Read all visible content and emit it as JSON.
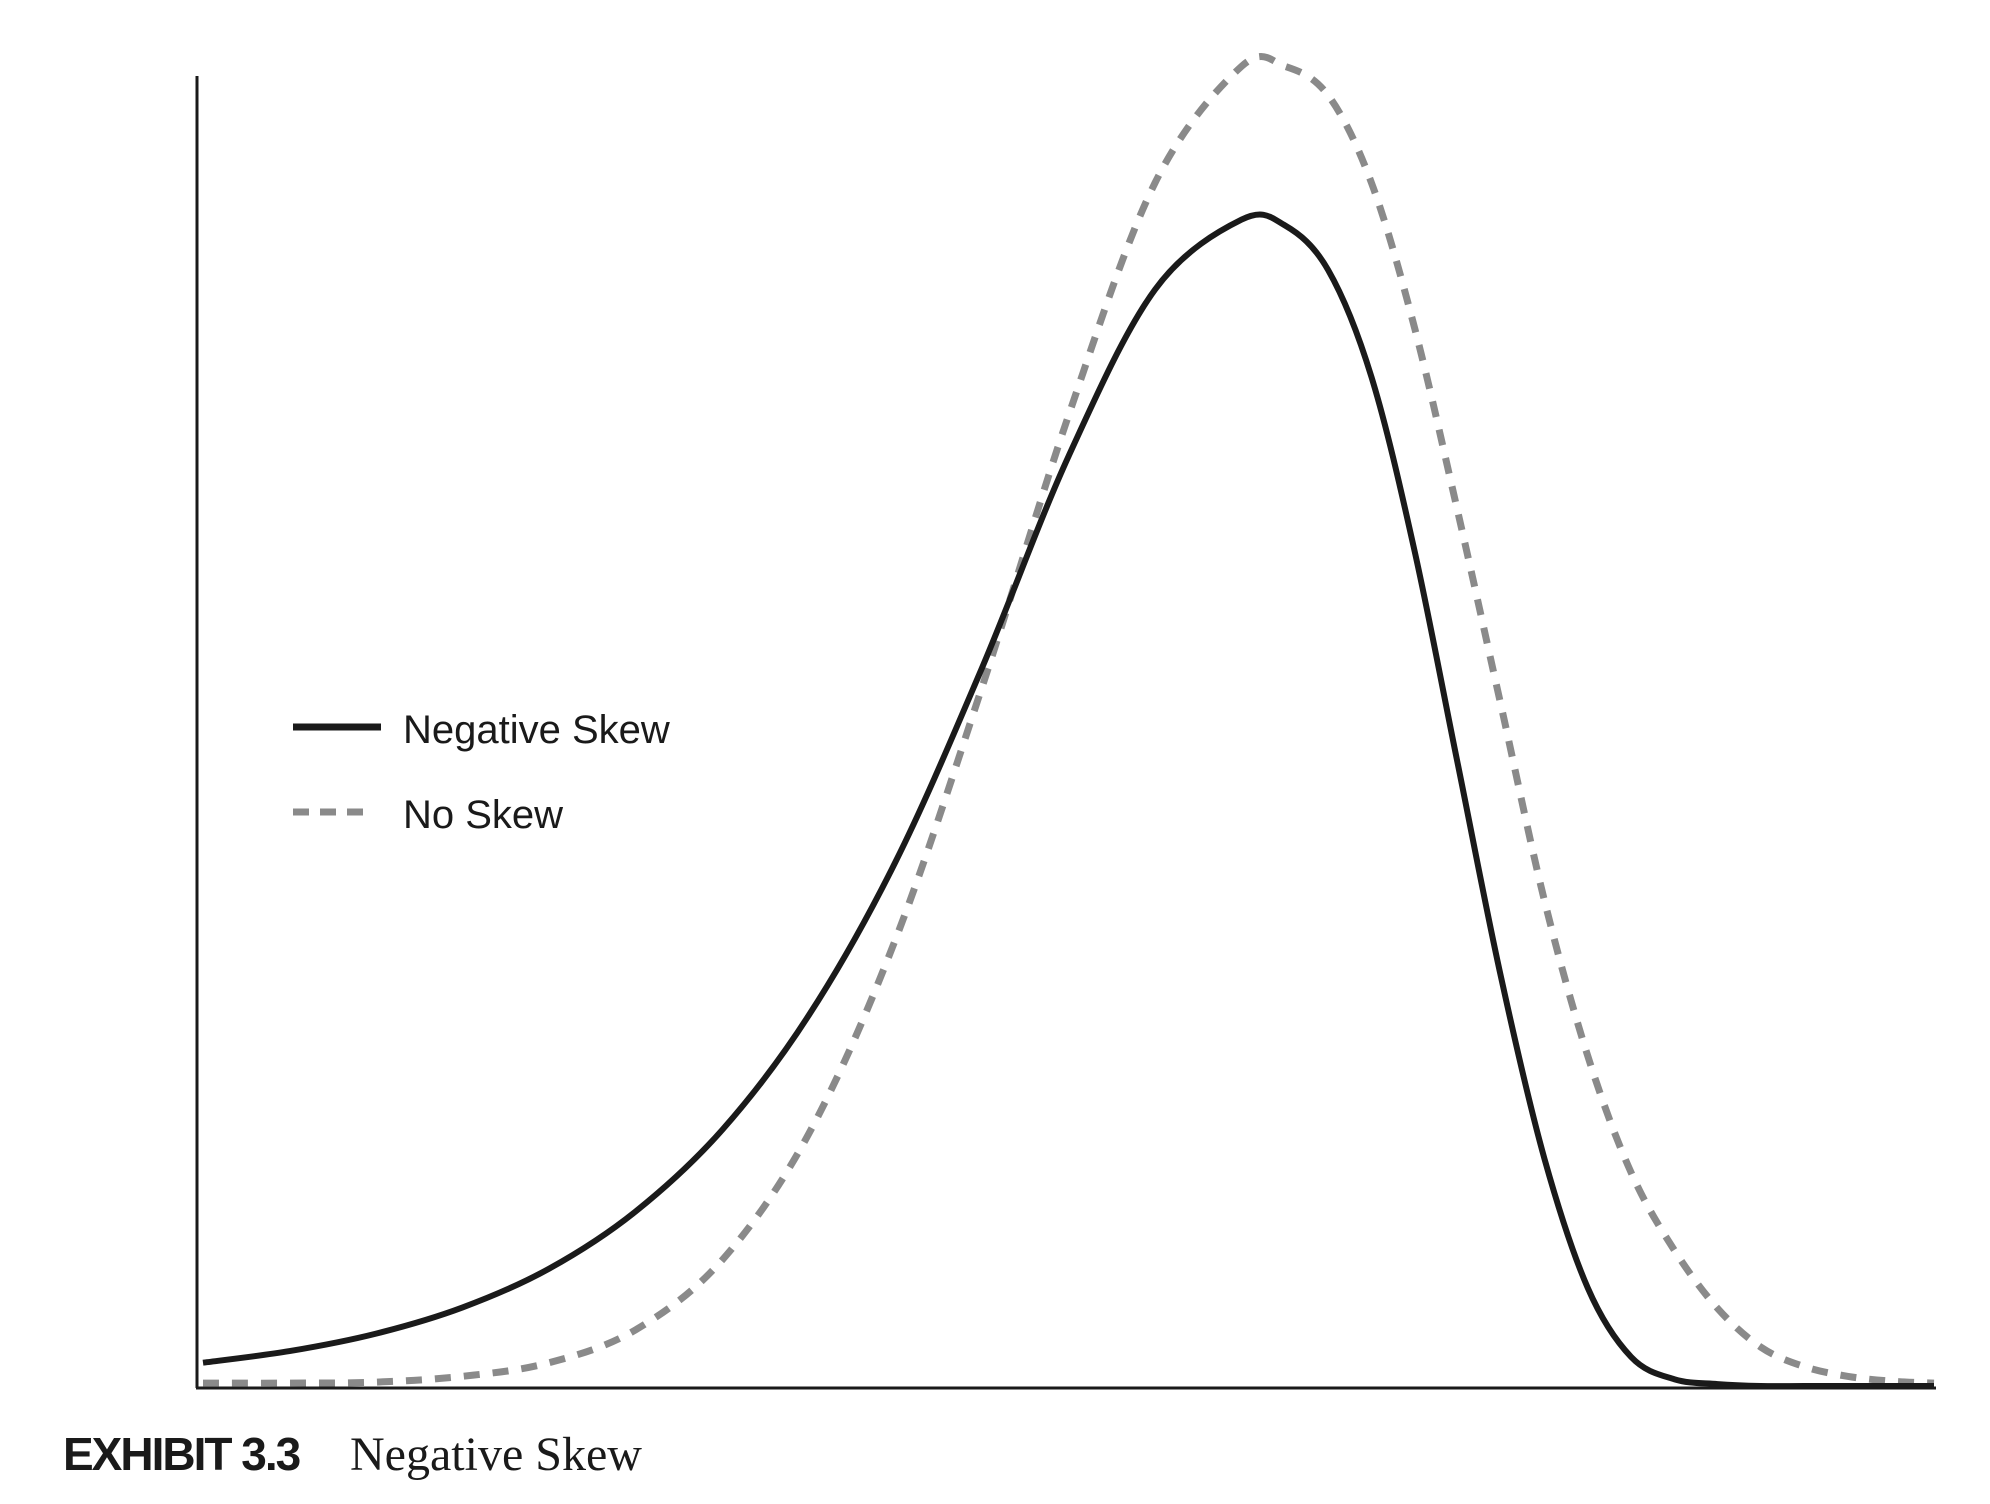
{
  "caption": {
    "label": "EXHIBIT 3.3",
    "title": "Negative Skew"
  },
  "chart_data": {
    "type": "line",
    "title": "",
    "xlabel": "",
    "ylabel": "",
    "xlim": [
      0,
      1
    ],
    "ylim": [
      0,
      1.35
    ],
    "grid": false,
    "legend_position": "middle-left",
    "x": [
      0,
      0.05,
      0.1,
      0.15,
      0.2,
      0.25,
      0.3,
      0.35,
      0.4,
      0.45,
      0.5,
      0.55,
      0.6,
      0.625,
      0.65,
      0.675,
      0.7,
      0.725,
      0.75,
      0.775,
      0.8,
      0.825,
      0.85,
      0.875,
      0.9,
      0.925,
      0.95,
      0.975,
      1
    ],
    "series": [
      {
        "name": "Negative Skew",
        "style": "solid",
        "color": "#1a1a1a",
        "values": [
          0.024,
          0.036,
          0.054,
          0.081,
          0.121,
          0.18,
          0.264,
          0.382,
          0.54,
          0.74,
          0.958,
          1.13,
          1.202,
          1.196,
          1.15,
          1.04,
          0.86,
          0.64,
          0.42,
          0.234,
          0.101,
          0.03,
          0.007,
          0.002,
          0,
          0,
          0,
          0,
          0
        ]
      },
      {
        "name": "No Skew",
        "style": "dashed",
        "color": "#8a8a8a",
        "values": [
          0.003,
          0.003,
          0.004,
          0.01,
          0.024,
          0.058,
          0.13,
          0.26,
          0.46,
          0.72,
          1.0,
          1.24,
          1.36,
          1.36,
          1.33,
          1.24,
          1.09,
          0.9,
          0.7,
          0.5,
          0.34,
          0.22,
          0.14,
          0.08,
          0.04,
          0.02,
          0.01,
          0.005,
          0.003
        ]
      }
    ]
  }
}
